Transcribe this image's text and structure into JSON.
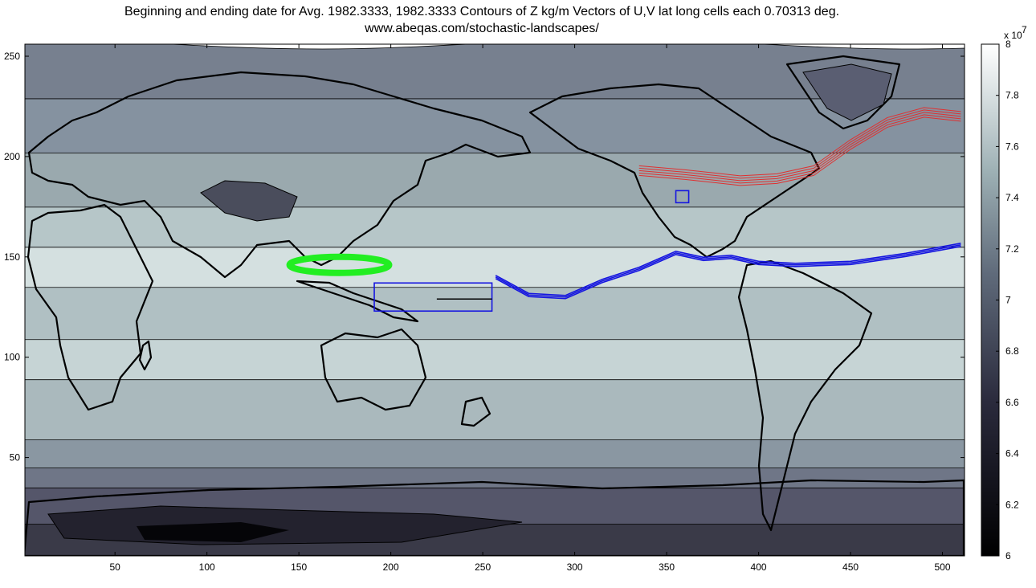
{
  "chart_data": {
    "type": "contour",
    "title": "Beginning and ending date for Avg.  1982.3333, 1982.3333 Contours of Z kg/m  Vectors of U,V  lat long cells each 0.70313 deg.",
    "subtitle": "www.abeqas.com/stochastic-landscapes/",
    "xlabel": "",
    "ylabel": "",
    "xlim": [
      1,
      512
    ],
    "ylim": [
      1,
      256
    ],
    "x_ticks": [
      50,
      100,
      150,
      200,
      250,
      300,
      350,
      400,
      450,
      500
    ],
    "y_ticks": [
      50,
      100,
      150,
      200,
      250
    ],
    "grid": false,
    "colorbar": {
      "min": 6,
      "max": 8,
      "ticks": [
        "6",
        "6.2",
        "6.4",
        "6.6",
        "6.8",
        "7",
        "7.2",
        "7.4",
        "7.6",
        "7.8",
        "8"
      ],
      "exponent_label": "x 10",
      "exponent": "7",
      "colormap": "bone",
      "color_low": "#000000",
      "color_high": "#ffffff"
    },
    "contour_bands": [
      {
        "lat_range": [
          1,
          20
        ],
        "level": 6.35,
        "color": "#3a3a48"
      },
      {
        "lat_range": [
          20,
          38
        ],
        "level": 6.6,
        "color": "#55566a"
      },
      {
        "lat_range": [
          38,
          48
        ],
        "level": 6.85,
        "color": "#6f7687"
      },
      {
        "lat_range": [
          48,
          62
        ],
        "level": 7.05,
        "color": "#8a97a2"
      },
      {
        "lat_range": [
          62,
          92
        ],
        "level": 7.3,
        "color": "#aab9bd"
      },
      {
        "lat_range": [
          92,
          112
        ],
        "level": 7.5,
        "color": "#c6d4d5"
      },
      {
        "lat_range": [
          112,
          138
        ],
        "level": 7.35,
        "color": "#b0c0c3"
      },
      {
        "lat_range": [
          138,
          158
        ],
        "level": 7.55,
        "color": "#d4e0e0"
      },
      {
        "lat_range": [
          158,
          178
        ],
        "level": 7.4,
        "color": "#b6c6c8"
      },
      {
        "lat_range": [
          178,
          205
        ],
        "level": 7.25,
        "color": "#9aa9ae"
      },
      {
        "lat_range": [
          205,
          232
        ],
        "level": 7.05,
        "color": "#8592a0"
      },
      {
        "lat_range": [
          232,
          256
        ],
        "level": 6.9,
        "color": "#77808f"
      }
    ],
    "trajectories": [
      {
        "color": "green",
        "description_shape": "ellipse",
        "x_center": 172,
        "y_center": 146
      },
      {
        "color": "blue",
        "x": [
          257,
          275,
          295,
          315,
          335,
          355,
          370,
          385,
          400,
          420,
          450,
          480,
          510
        ],
        "y": [
          140,
          131,
          130,
          138,
          144,
          152,
          149,
          150,
          147,
          146,
          147,
          151,
          156
        ]
      },
      {
        "color": "red",
        "x": [
          335,
          360,
          390,
          410,
          430,
          450,
          470,
          490,
          510
        ],
        "y": [
          193,
          191,
          188,
          189,
          193,
          206,
          217,
          222,
          220
        ]
      }
    ],
    "boxes": [
      {
        "color": "blue",
        "x": [
          191,
          255
        ],
        "y": [
          123,
          137
        ]
      },
      {
        "color": "blue",
        "x": [
          355,
          362
        ],
        "y": [
          177,
          183
        ]
      }
    ],
    "vector_line": {
      "color": "black",
      "x": [
        225,
        255
      ],
      "y": [
        129,
        129
      ]
    }
  }
}
